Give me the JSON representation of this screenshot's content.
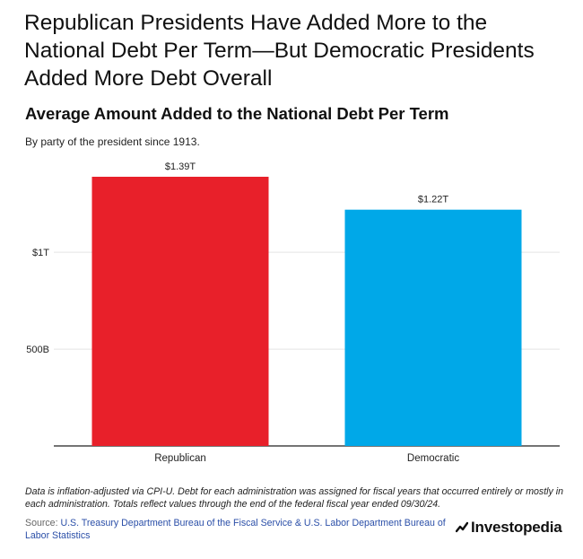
{
  "headline": "Republican Presidents Have Added More to the National Debt Per Term—But Democratic Presidents Added More Debt Overall",
  "subtitle": "Average Amount Added to the National Debt Per Term",
  "caption": "By party of the president since 1913.",
  "chart_data": {
    "type": "bar",
    "categories": [
      "Republican",
      "Democratic"
    ],
    "values": [
      1.39,
      1.22
    ],
    "value_labels": [
      "$1.39T",
      "$1.22T"
    ],
    "colors": [
      "#e8202a",
      "#00a8e8"
    ],
    "ylim": [
      0,
      1.39
    ],
    "y_ticks": [
      {
        "value": 0.5,
        "label": "500B"
      },
      {
        "value": 1.0,
        "label": "$1T"
      }
    ],
    "grid": true
  },
  "footnote": "Data is inflation-adjusted via CPI-U. Debt for each administration was assigned for fiscal years that occurred entirely or mostly in each administration. Totals reflect values through the end of the federal fiscal year ended 09/30/24.",
  "source": {
    "label": "Source: ",
    "text": "U.S. Treasury Department Bureau of the Fiscal Service & U.S. Labor Department Bureau of Labor Statistics"
  },
  "brand": {
    "name": "Investopedia",
    "icon": "investopedia-logo-icon"
  }
}
